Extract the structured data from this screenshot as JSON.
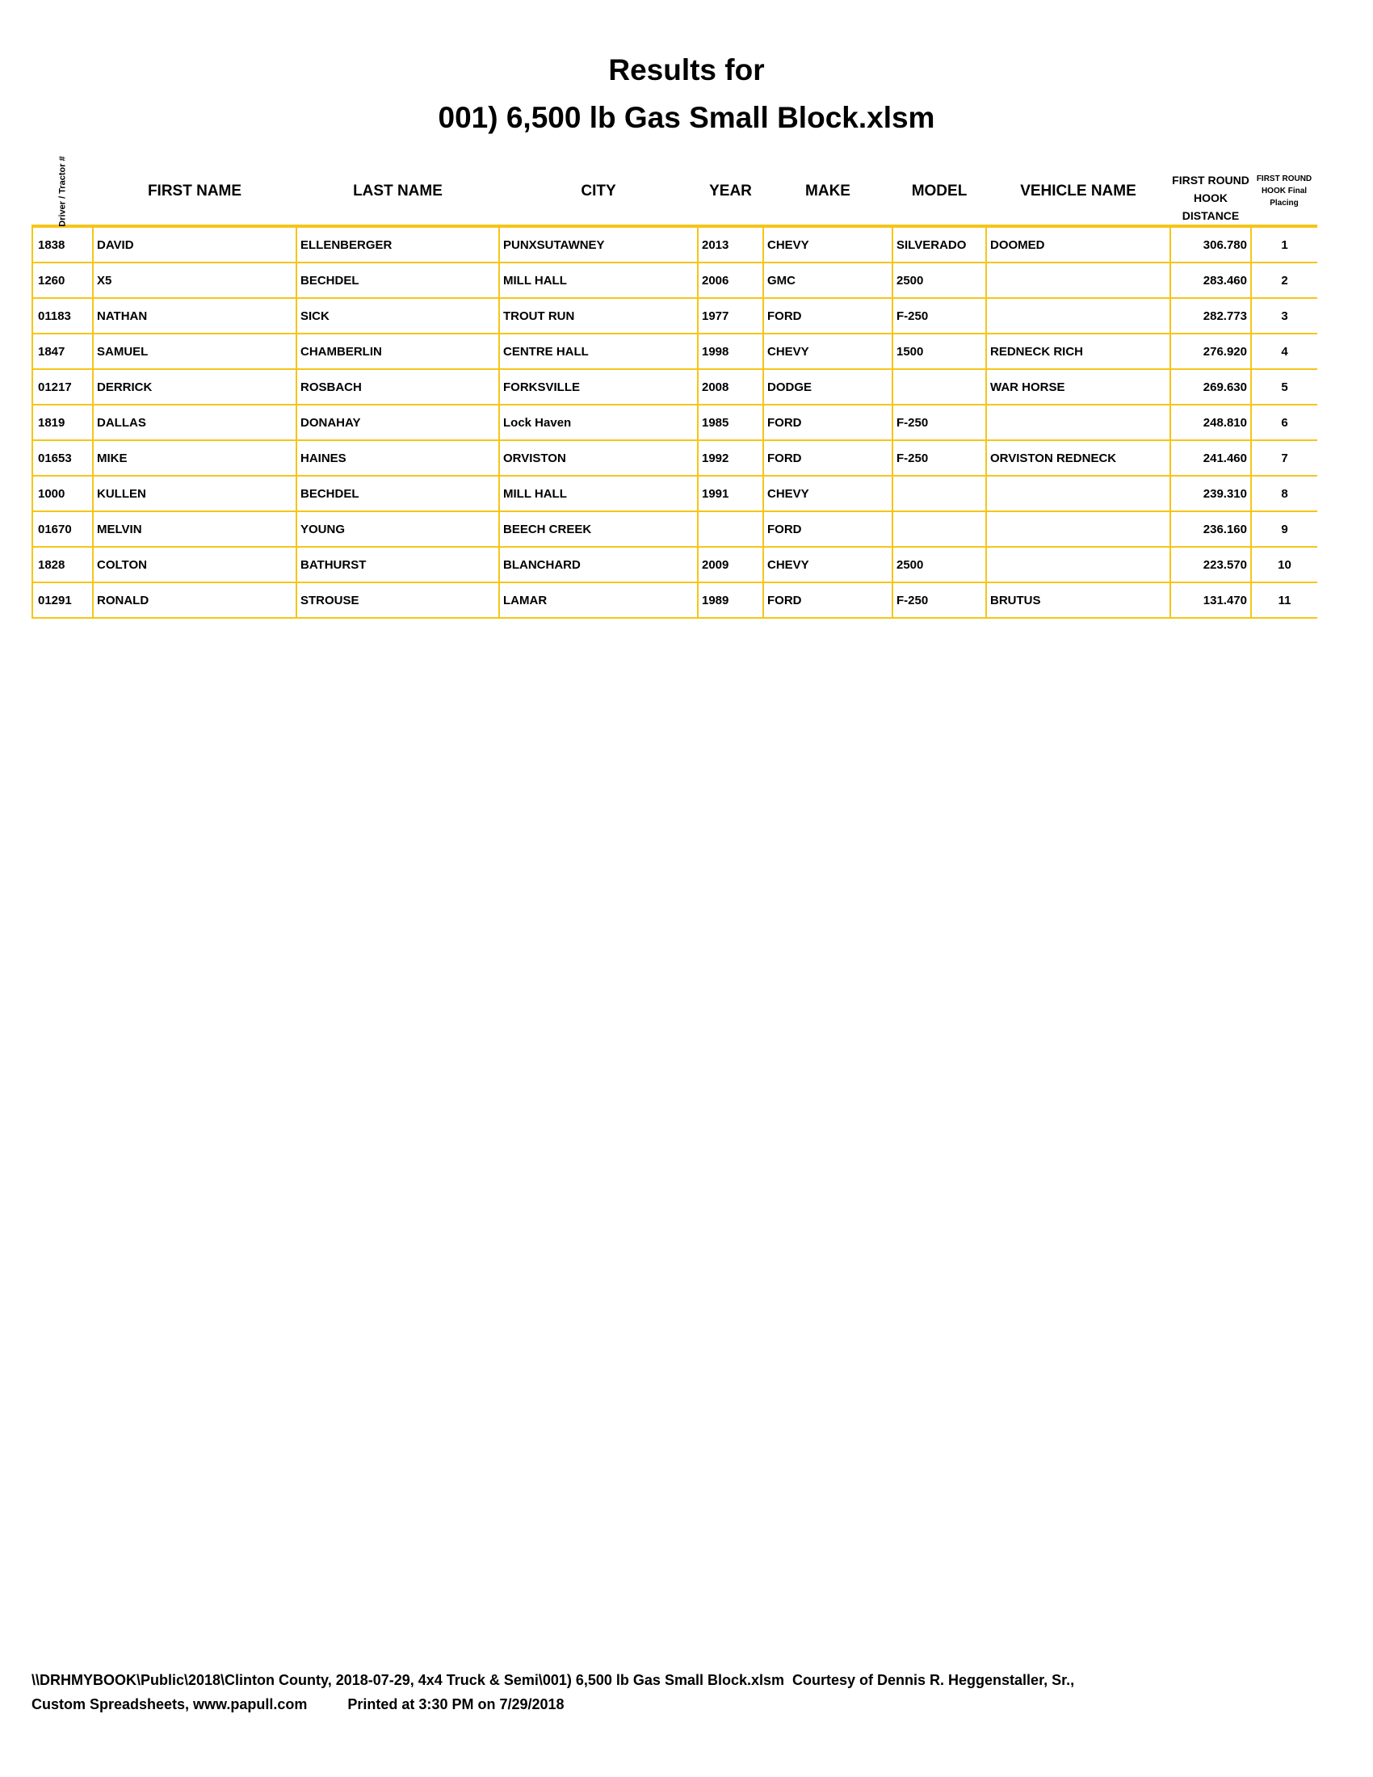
{
  "title": {
    "line1": "Results for",
    "line2": "001) 6,500 lb Gas Small Block.xlsm"
  },
  "columns": [
    "Driver / Tractor #",
    "FIRST NAME",
    "LAST NAME",
    "CITY",
    "YEAR",
    "MAKE",
    "MODEL",
    "VEHICLE NAME",
    "FIRST ROUND HOOK DISTANCE",
    "FIRST ROUND HOOK Final Placing"
  ],
  "rows": [
    [
      "1838",
      "DAVID",
      "ELLENBERGER",
      "PUNXSUTAWNEY",
      "2013",
      "CHEVY",
      "SILVERADO",
      "DOOMED",
      "306.780",
      "1"
    ],
    [
      "1260",
      "X5",
      "BECHDEL",
      "MILL HALL",
      "2006",
      "GMC",
      "2500",
      "",
      "283.460",
      "2"
    ],
    [
      "01183",
      "NATHAN",
      "SICK",
      "TROUT RUN",
      "1977",
      "FORD",
      "F-250",
      "",
      "282.773",
      "3"
    ],
    [
      "1847",
      "SAMUEL",
      "CHAMBERLIN",
      "CENTRE HALL",
      "1998",
      "CHEVY",
      "1500",
      "REDNECK RICH",
      "276.920",
      "4"
    ],
    [
      "01217",
      "DERRICK",
      "ROSBACH",
      "FORKSVILLE",
      "2008",
      "DODGE",
      "",
      "WAR HORSE",
      "269.630",
      "5"
    ],
    [
      "1819",
      "DALLAS",
      "DONAHAY",
      "Lock Haven",
      "1985",
      "FORD",
      "F-250",
      "",
      "248.810",
      "6"
    ],
    [
      "01653",
      "MIKE",
      "HAINES",
      "ORVISTON",
      "1992",
      "FORD",
      "F-250",
      "ORVISTON REDNECK",
      "241.460",
      "7"
    ],
    [
      "1000",
      "KULLEN",
      "BECHDEL",
      "MILL HALL",
      "1991",
      "CHEVY",
      "",
      "",
      "239.310",
      "8"
    ],
    [
      "01670",
      "MELVIN",
      "YOUNG",
      "BEECH CREEK",
      "",
      "FORD",
      "",
      "",
      "236.160",
      "9"
    ],
    [
      "1828",
      "COLTON",
      "BATHURST",
      "BLANCHARD",
      "2009",
      "CHEVY",
      "2500",
      "",
      "223.570",
      "10"
    ],
    [
      "01291",
      "RONALD",
      "STROUSE",
      "LAMAR",
      "1989",
      "FORD",
      "F-250",
      "BRUTUS",
      "131.470",
      "11"
    ]
  ],
  "footer": {
    "line1": "\\\\DRHMYBOOK\\Public\\2018\\Clinton County, 2018-07-29, 4x4 Truck & Semi\\001) 6,500 lb Gas Small Block.xlsm  Courtesy of Dennis R. Heggenstaller, Sr.,",
    "line2": "Custom Spreadsheets, www.papull.com          Printed at 3:30 PM on 7/29/2018"
  },
  "colors": {
    "grid": "#f5c518"
  }
}
